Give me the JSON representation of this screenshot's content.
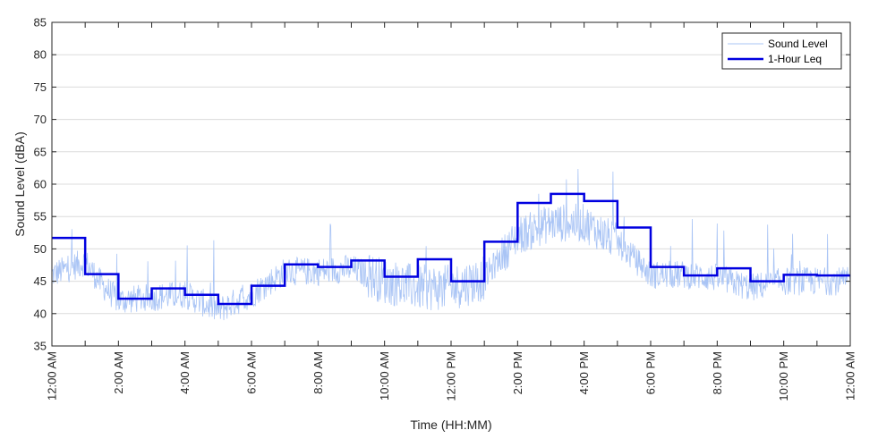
{
  "chart_data": {
    "type": "line",
    "title": "",
    "xlabel": "Time (HH:MM)",
    "ylabel": "Sound Level (dBA)",
    "xlim": [
      0,
      24
    ],
    "ylim": [
      35,
      85
    ],
    "x_tick_values": [
      0,
      2,
      4,
      6,
      8,
      10,
      12,
      14,
      16,
      18,
      20,
      22,
      24
    ],
    "x_tick_labels": [
      "12:00 AM",
      "2:00 AM",
      "4:00 AM",
      "6:00 AM",
      "8:00 AM",
      "10:00 AM",
      "12:00 PM",
      "2:00 PM",
      "4:00 PM",
      "6:00 PM",
      "8:00 PM",
      "10:00 PM",
      "12:00 AM"
    ],
    "y_ticks": [
      35,
      40,
      45,
      50,
      55,
      60,
      65,
      70,
      75,
      80,
      85
    ],
    "grid": "horizontal",
    "legend_position": "top-right",
    "series": [
      {
        "name": "Sound Level",
        "style": "thin-noisy-line",
        "color": "#a9c4f5",
        "base_profile": [
          [
            0,
            46
          ],
          [
            1,
            48
          ],
          [
            1.5,
            44.5
          ],
          [
            2,
            42
          ],
          [
            3,
            42.5
          ],
          [
            4,
            43
          ],
          [
            5,
            40.5
          ],
          [
            6,
            43
          ],
          [
            7,
            46.5
          ],
          [
            8,
            46.5
          ],
          [
            9,
            47
          ],
          [
            10,
            45
          ],
          [
            11,
            44
          ],
          [
            12,
            44
          ],
          [
            13,
            45.5
          ],
          [
            14,
            52
          ],
          [
            15,
            54
          ],
          [
            16,
            54
          ],
          [
            17,
            51
          ],
          [
            18,
            46
          ],
          [
            19,
            46
          ],
          [
            20,
            45.5
          ],
          [
            21,
            44
          ],
          [
            22,
            45
          ],
          [
            23,
            45
          ],
          [
            24,
            45
          ]
        ]
      },
      {
        "name": "1-Hour Leq",
        "style": "step",
        "color": "#0000e0",
        "hours": [
          0,
          1,
          2,
          3,
          4,
          5,
          6,
          7,
          8,
          9,
          10,
          11,
          12,
          13,
          14,
          15,
          16,
          17,
          18,
          19,
          20,
          21,
          22,
          23
        ],
        "values": [
          51.7,
          46.1,
          42.3,
          43.9,
          42.9,
          41.5,
          44.3,
          47.6,
          47.2,
          48.2,
          45.7,
          48.4,
          45.0,
          51.1,
          57.1,
          58.5,
          57.4,
          53.3,
          47.2,
          45.9,
          47.0,
          45.0,
          46.0,
          45.9
        ]
      }
    ]
  }
}
